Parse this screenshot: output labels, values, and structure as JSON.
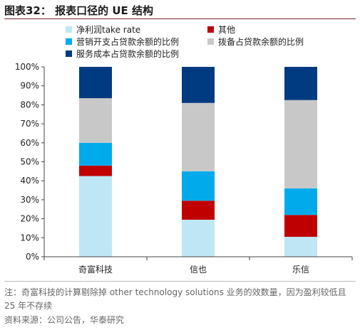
{
  "header": {
    "title": "图表32：  报表口径的 UE 结构"
  },
  "footer": {
    "note": "注：奇富科技的计算剔除掉 other technology solutions 业务的效数量，因为盈利较低且 25 年不存续",
    "source": "资料来源：公司公告，华泰研究"
  },
  "chart_data": {
    "type": "bar",
    "stacked": true,
    "categories": [
      "奇富科技",
      "信也",
      "乐信"
    ],
    "series": [
      {
        "name": "净利润take rate",
        "color": "#bfe6f5",
        "values": [
          42.5,
          19.5,
          10.5
        ]
      },
      {
        "name": "其他",
        "color": "#c00000",
        "values": [
          5.5,
          10.0,
          11.5
        ]
      },
      {
        "name": "营销开支占贷款余额的比例",
        "color": "#00aaeb",
        "values": [
          12.0,
          15.5,
          14.0
        ]
      },
      {
        "name": "拨备占贷款余额的比例",
        "color": "#c8c8c8",
        "values": [
          23.5,
          36.0,
          46.5
        ]
      },
      {
        "name": "服务成本占贷款余额的比例",
        "color": "#003a80",
        "values": [
          16.5,
          19.0,
          17.5
        ]
      }
    ],
    "y_ticks": [
      "0%",
      "10%",
      "20%",
      "30%",
      "40%",
      "50%",
      "60%",
      "70%",
      "80%",
      "90%",
      "100%"
    ],
    "ylim": [
      0,
      100
    ],
    "legend_position": "top",
    "grid": false
  }
}
